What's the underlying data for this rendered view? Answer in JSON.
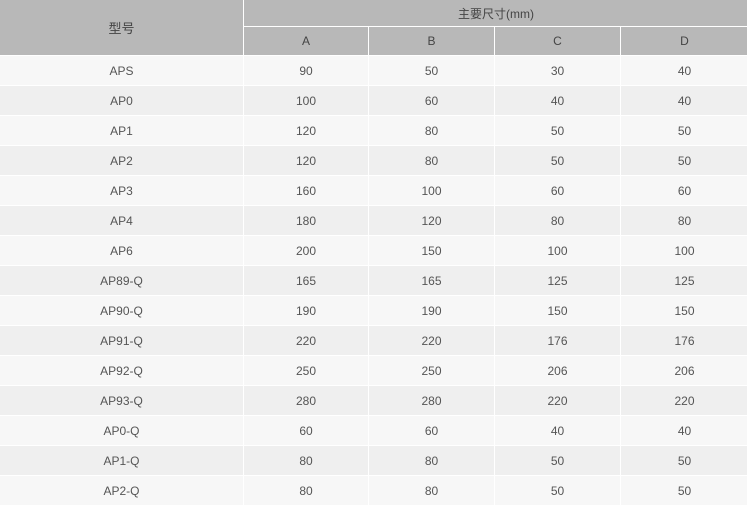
{
  "table": {
    "model_header": "型号",
    "group_header": "主要尺寸(mm)",
    "dimension_headers": [
      "A",
      "B",
      "C",
      "D"
    ],
    "rows": [
      {
        "model": "APS",
        "values": [
          "90",
          "50",
          "30",
          "40"
        ]
      },
      {
        "model": "AP0",
        "values": [
          "100",
          "60",
          "40",
          "40"
        ]
      },
      {
        "model": "AP1",
        "values": [
          "120",
          "80",
          "50",
          "50"
        ]
      },
      {
        "model": "AP2",
        "values": [
          "120",
          "80",
          "50",
          "50"
        ]
      },
      {
        "model": "AP3",
        "values": [
          "160",
          "100",
          "60",
          "60"
        ]
      },
      {
        "model": "AP4",
        "values": [
          "180",
          "120",
          "80",
          "80"
        ]
      },
      {
        "model": "AP6",
        "values": [
          "200",
          "150",
          "100",
          "100"
        ]
      },
      {
        "model": "AP89-Q",
        "values": [
          "165",
          "165",
          "125",
          "125"
        ]
      },
      {
        "model": "AP90-Q",
        "values": [
          "190",
          "190",
          "150",
          "150"
        ]
      },
      {
        "model": "AP91-Q",
        "values": [
          "220",
          "220",
          "176",
          "176"
        ]
      },
      {
        "model": "AP92-Q",
        "values": [
          "250",
          "250",
          "206",
          "206"
        ]
      },
      {
        "model": "AP93-Q",
        "values": [
          "280",
          "280",
          "220",
          "220"
        ]
      },
      {
        "model": "AP0-Q",
        "values": [
          "60",
          "60",
          "40",
          "40"
        ]
      },
      {
        "model": "AP1-Q",
        "values": [
          "80",
          "80",
          "50",
          "50"
        ]
      },
      {
        "model": "AP2-Q",
        "values": [
          "80",
          "80",
          "50",
          "50"
        ]
      }
    ]
  },
  "colors": {
    "header_bg": "#b8b8b8",
    "row_light": "#f7f7f7",
    "row_dark": "#efefef"
  }
}
